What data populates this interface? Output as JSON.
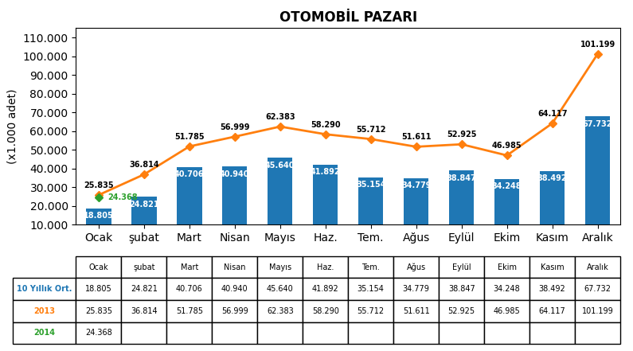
{
  "chart_data": {
    "type": "bar",
    "title": "OTOMOBİL PAZARI",
    "ylabel": "(x1.000 adet)",
    "categories": [
      "Ocak",
      "şubat",
      "Mart",
      "Nisan",
      "Mayıs",
      "Haz.",
      "Tem.",
      "Ağus",
      "Eylül",
      "Ekim",
      "Kasım",
      "Aralık"
    ],
    "series": [
      {
        "name": "10 Yıllık Ort.",
        "type": "bar",
        "values": [
          18805,
          24821,
          40706,
          40940,
          45640,
          41892,
          35154,
          34779,
          38847,
          34248,
          38492,
          67732
        ],
        "value_labels": [
          "18.805",
          "24.821",
          "40.706",
          "40.940",
          "45.640",
          "41.892",
          "35.154",
          "34.779",
          "38.847",
          "34.248",
          "38.492",
          "67.732"
        ]
      },
      {
        "name": "2013",
        "type": "line",
        "marker": "D",
        "values": [
          25835,
          36814,
          51785,
          56999,
          62383,
          58290,
          55712,
          51611,
          52925,
          46985,
          64117,
          101199
        ],
        "value_labels": [
          "25.835",
          "36.814",
          "51.785",
          "56.999",
          "62.383",
          "58.290",
          "55.712",
          "51.611",
          "52.925",
          "46.985",
          "64.117",
          "101.199"
        ]
      },
      {
        "name": "2014",
        "type": "line",
        "marker": "D",
        "values": [
          24368,
          null,
          null,
          null,
          null,
          null,
          null,
          null,
          null,
          null,
          null,
          null
        ],
        "value_labels": [
          "24.368",
          null,
          null,
          null,
          null,
          null,
          null,
          null,
          null,
          null,
          null,
          null
        ]
      }
    ],
    "ylim": [
      10000,
      115000
    ],
    "yticks": [
      {
        "value": 10000,
        "label": "10.000"
      },
      {
        "value": 20000,
        "label": "20.000"
      },
      {
        "value": 30000,
        "label": "30.000"
      },
      {
        "value": 40000,
        "label": "40.000"
      },
      {
        "value": 50000,
        "label": "50.000"
      },
      {
        "value": 60000,
        "label": "60.000"
      },
      {
        "value": 70000,
        "label": "70.000"
      },
      {
        "value": 80000,
        "label": "80.000"
      },
      {
        "value": 90000,
        "label": "90.000"
      },
      {
        "value": 100000,
        "label": "100.000"
      },
      {
        "value": 110000,
        "label": "110.000"
      }
    ],
    "grid": false,
    "data_labels": true
  }
}
